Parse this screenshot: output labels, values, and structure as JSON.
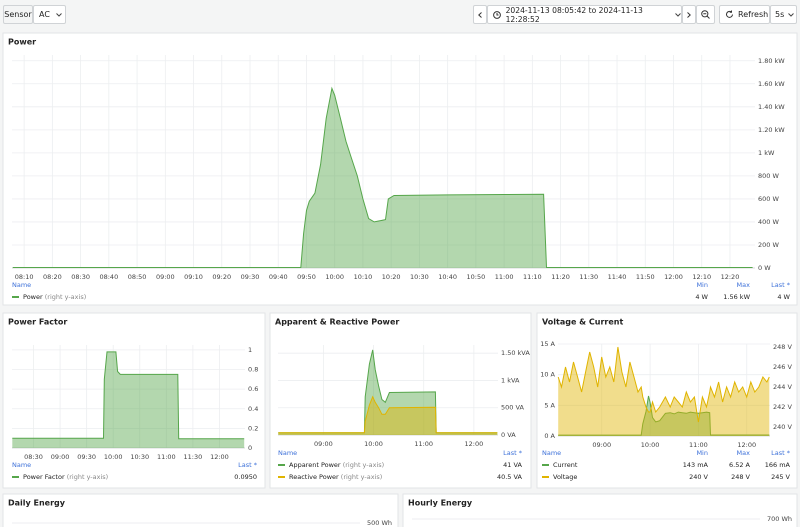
{
  "toolbar": {
    "variable_label": "Sensor",
    "variable_value": "AC",
    "time_range": "2024-11-13 08:05:42 to 2024-11-13 12:28:52",
    "refresh": "Refresh",
    "interval": "5s"
  },
  "panels": [
    {
      "title": "Power",
      "chart_data": {
        "type": "line",
        "fill": true,
        "grid": true,
        "x": [
          "08:06",
          "09:48",
          "09:49",
          "09:50",
          "09:51",
          "09:53",
          "09:55",
          "09:57",
          "09:59",
          "10:00",
          "10:02",
          "10:04",
          "10:06",
          "10:08",
          "10:10",
          "10:12",
          "10:14",
          "10:16",
          "10:18",
          "10:19",
          "10:21",
          "10:40",
          "11:00",
          "11:14",
          "11:15",
          "12:28"
        ],
        "series": [
          {
            "name": "Power",
            "color": "#56a64b",
            "axis": "y2",
            "values": [
              4,
              4,
              300,
              500,
              580,
              650,
              900,
              1300,
              1560,
              1500,
              1300,
              1100,
              950,
              800,
              600,
              430,
              400,
              410,
              420,
              600,
              630,
              635,
              638,
              640,
              4,
              4
            ]
          }
        ],
        "y2lim": [
          0,
          1850
        ],
        "y2ticks": [
          {
            "value": 0,
            "label": "0 W"
          },
          {
            "value": 200,
            "label": "200 W"
          },
          {
            "value": 400,
            "label": "400 W"
          },
          {
            "value": 600,
            "label": "600 W"
          },
          {
            "value": 800,
            "label": "800 W"
          },
          {
            "value": 1000,
            "label": "1 kW"
          },
          {
            "value": 1200,
            "label": "1.20 kW"
          },
          {
            "value": 1400,
            "label": "1.40 kW"
          },
          {
            "value": 1600,
            "label": "1.60 kW"
          },
          {
            "value": 1800,
            "label": "1.80 kW"
          }
        ],
        "xticks": [
          "08:10",
          "08:20",
          "08:30",
          "08:40",
          "08:50",
          "09:00",
          "09:10",
          "09:20",
          "09:30",
          "09:40",
          "09:50",
          "10:00",
          "10:10",
          "10:20",
          "10:30",
          "10:40",
          "10:50",
          "11:00",
          "11:10",
          "11:20",
          "11:30",
          "11:40",
          "11:50",
          "12:00",
          "12:10",
          "12:20"
        ]
      },
      "legend": {
        "columns": [
          "Name",
          "Min",
          "Max",
          "Last *"
        ],
        "rows": [
          {
            "note": "(right y-axis)",
            "cells": [
              "4 W",
              "1.56 kW",
              "4 W"
            ]
          }
        ]
      }
    },
    {
      "title": "Power Factor",
      "chart_data": {
        "type": "line",
        "fill": true,
        "grid": true,
        "x": [
          "08:06",
          "09:49",
          "09:50",
          "09:53",
          "10:03",
          "10:05",
          "10:08",
          "11:13",
          "11:14",
          "12:28"
        ],
        "series": [
          {
            "name": "Power Factor",
            "color": "#56a64b",
            "axis": "y2",
            "values": [
              0.1,
              0.1,
              0.7,
              0.98,
              0.98,
              0.78,
              0.75,
              0.75,
              0.095,
              0.095
            ]
          }
        ],
        "y2lim": [
          0,
          1.05
        ],
        "y2ticks": [
          0,
          0.2,
          0.4,
          0.6,
          0.8,
          1
        ],
        "xticks": [
          "08:30",
          "09:00",
          "09:30",
          "10:00",
          "10:30",
          "11:00",
          "11:30",
          "12:00"
        ]
      },
      "legend": {
        "columns": [
          "Name",
          "Last *"
        ],
        "rows": [
          {
            "note": "(right y-axis)",
            "cells": [
              "0.0950"
            ]
          }
        ]
      }
    },
    {
      "title": "Apparent & Reactive Power",
      "chart_data": {
        "type": "line",
        "fill": true,
        "grid": true,
        "x": [
          "08:06",
          "09:49",
          "09:50",
          "09:55",
          "09:59",
          "10:02",
          "10:06",
          "10:10",
          "10:14",
          "10:19",
          "11:14",
          "11:15",
          "12:28"
        ],
        "series": [
          {
            "name": "Apparent Power",
            "color": "#56a64b",
            "axis": "y2",
            "values": [
              40,
              40,
              700,
              1300,
              1560,
              1200,
              900,
              650,
              600,
              780,
              790,
              41,
              41
            ]
          },
          {
            "name": "Reactive Power",
            "color": "#e0b400",
            "axis": "y2",
            "values": [
              40,
              40,
              250,
              550,
              700,
              600,
              500,
              380,
              380,
              500,
              510,
              40.5,
              40.5
            ]
          }
        ],
        "y2lim": [
          0,
          1650
        ],
        "y2ticks": [
          {
            "value": 0,
            "label": "0 VA"
          },
          {
            "value": 500,
            "label": "500 VA"
          },
          {
            "value": 1000,
            "label": "1 kVA"
          },
          {
            "value": 1500,
            "label": "1.50 kVA"
          }
        ],
        "xticks": [
          "09:00",
          "10:00",
          "11:00",
          "12:00"
        ]
      },
      "legend": {
        "columns": [
          "Name",
          "Last *"
        ],
        "rows": [
          {
            "note": "(right y-axis)",
            "cells": [
              "41 VA"
            ]
          },
          {
            "note": "(right y-axis)",
            "cells": [
              "40.5 VA"
            ]
          }
        ]
      }
    },
    {
      "title": "Voltage & Current",
      "chart_data": {
        "type": "line",
        "fill": true,
        "grid": true,
        "x": [
          "08:06",
          "08:10",
          "08:15",
          "08:20",
          "08:25",
          "08:30",
          "08:35",
          "08:40",
          "08:45",
          "08:50",
          "08:55",
          "09:00",
          "09:05",
          "09:10",
          "09:15",
          "09:20",
          "09:25",
          "09:30",
          "09:35",
          "09:40",
          "09:45",
          "09:49",
          "09:51",
          "09:55",
          "09:58",
          "10:00",
          "10:03",
          "10:07",
          "10:12",
          "10:19",
          "10:25",
          "10:30",
          "10:35",
          "10:40",
          "10:45",
          "10:50",
          "10:55",
          "11:00",
          "11:05",
          "11:10",
          "11:14",
          "11:15",
          "11:20",
          "11:25",
          "11:30",
          "11:35",
          "11:40",
          "11:45",
          "11:50",
          "11:55",
          "12:00",
          "12:05",
          "12:10",
          "12:15",
          "12:20",
          "12:25",
          "12:28"
        ],
        "series": [
          {
            "name": "Current",
            "color": "#56a64b",
            "axis": "y",
            "values": [
              0.15,
              0.15,
              0.15,
              0.15,
              0.15,
              0.15,
              0.15,
              0.15,
              0.15,
              0.15,
              0.15,
              0.15,
              0.15,
              0.15,
              0.15,
              0.15,
              0.15,
              0.15,
              0.15,
              0.15,
              0.15,
              0.15,
              2,
              4,
              6.52,
              5.5,
              3,
              2.3,
              2.5,
              3.7,
              3.8,
              3.6,
              3.9,
              3.8,
              3.7,
              3.9,
              3.8,
              3.7,
              3.8,
              3.9,
              3.8,
              0.166,
              0.166,
              0.166,
              0.166,
              0.166,
              0.166,
              0.166,
              0.166,
              0.166,
              0.166,
              0.166,
              0.166,
              0.166,
              0.166,
              0.166,
              0.166
            ]
          },
          {
            "name": "Voltage",
            "color": "#e0b400",
            "axis": "y2",
            "values": [
              245,
              244,
              246,
              244.5,
              246.5,
              245,
              243.5,
              245.5,
              247.5,
              246,
              244,
              247,
              245,
              246,
              244.5,
              248,
              245.5,
              244,
              246.5,
              245,
              243.5,
              244,
              243,
              242,
              241.5,
              241.5,
              242.5,
              241.5,
              242,
              243,
              242,
              243,
              242.5,
              242,
              243.5,
              242.5,
              243,
              240.5,
              243,
              242,
              243.5,
              244,
              243,
              244.5,
              242.5,
              244,
              243,
              244.5,
              243.5,
              244,
              243,
              244.5,
              243.5,
              244,
              245,
              244.5,
              245
            ]
          }
        ],
        "ylim": [
          0,
          15
        ],
        "yticks": [
          {
            "value": 0,
            "label": "0 A"
          },
          {
            "value": 5,
            "label": "5 A"
          },
          {
            "value": 10,
            "label": "10 A"
          },
          {
            "value": 15,
            "label": "15 A"
          }
        ],
        "y2lim": [
          239.1,
          248.3
        ],
        "y2ticks": [
          {
            "value": 240,
            "label": "240 V"
          },
          {
            "value": 242,
            "label": "242 V"
          },
          {
            "value": 244,
            "label": "244 V"
          },
          {
            "value": 246,
            "label": "246 V"
          },
          {
            "value": 248,
            "label": "248 V"
          }
        ],
        "xticks": [
          "09:00",
          "10:00",
          "11:00",
          "12:00"
        ]
      },
      "legend": {
        "columns": [
          "Name",
          "Min",
          "Max",
          "Last *"
        ],
        "rows": [
          {
            "cells": [
              "143 mA",
              "6.52 A",
              "166 mA"
            ]
          },
          {
            "cells": [
              "240 V",
              "248 V",
              "245 V"
            ]
          }
        ]
      }
    },
    {
      "title": "Daily Energy",
      "chart_data": {
        "type": "bar",
        "y2ticks": [
          {
            "value": 500,
            "label": "500 Wh"
          }
        ]
      }
    },
    {
      "title": "Hourly Energy",
      "chart_data": {
        "type": "bar",
        "y2ticks": [
          {
            "value": 700,
            "label": "700 Wh"
          }
        ]
      }
    }
  ]
}
